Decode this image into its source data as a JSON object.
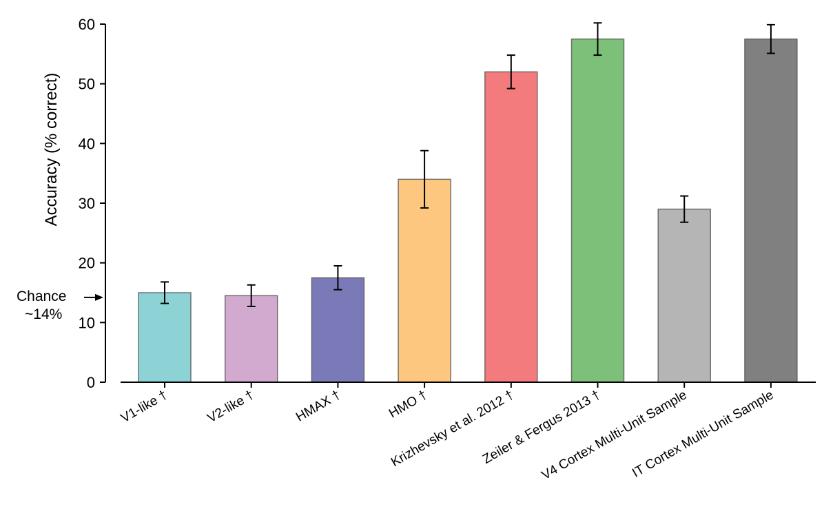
{
  "chart_data": {
    "type": "bar",
    "title": "",
    "xlabel": "",
    "ylabel": "Accuracy (% correct)",
    "ylim": [
      0,
      60
    ],
    "yticks": [
      "0",
      "10",
      "20",
      "30",
      "40",
      "50",
      "60"
    ],
    "grid": false,
    "categories": [
      "V1-like †",
      "V2-like †",
      "HMAX †",
      "HMO †",
      "Krizhevsky et al. 2012 †",
      "Zeiler & Fergus 2013 †",
      "V4 Cortex Multi-Unit Sample",
      "IT Cortex Multi-Unit Sample"
    ],
    "values": [
      15.0,
      14.5,
      17.5,
      34.0,
      52.0,
      57.5,
      29.0,
      57.5
    ],
    "errors": [
      1.8,
      1.8,
      2.0,
      4.8,
      2.8,
      2.7,
      2.2,
      2.4
    ],
    "colors": [
      "#8dd3d6",
      "#d3aacf",
      "#7b7ab8",
      "#fdc77f",
      "#f37b7d",
      "#7dc07a",
      "#b5b5b5",
      "#808080"
    ],
    "annotations": [
      {
        "lines": [
          "Chance",
          "~14%"
        ],
        "y": 14.2
      }
    ]
  }
}
